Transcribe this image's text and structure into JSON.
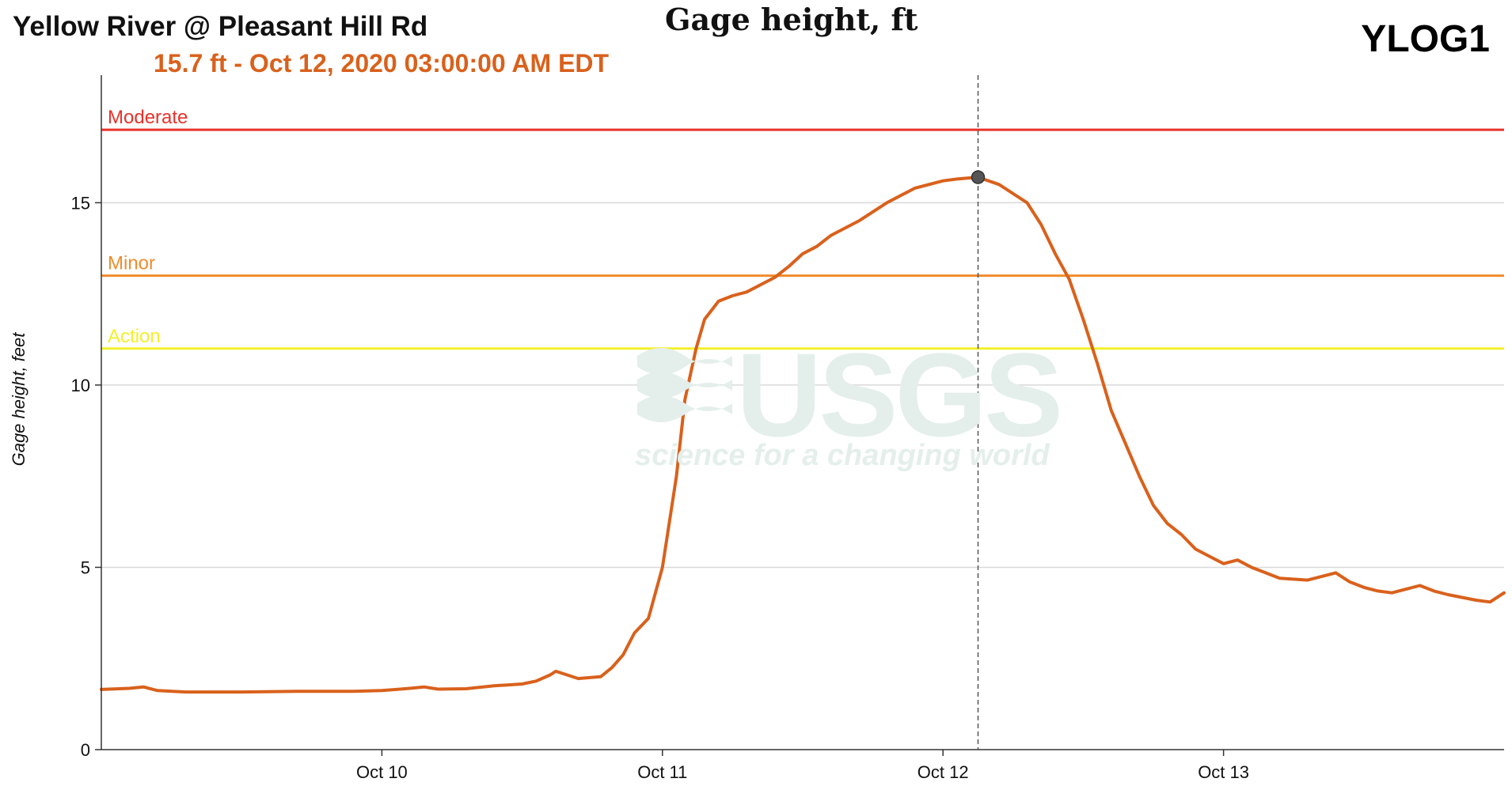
{
  "header": {
    "station_title": "Yellow River @ Pleasant Hill Rd",
    "readout": "15.7 ft - Oct 12, 2020 03:00:00 AM EDT",
    "chart_title": "Gage height, ft",
    "site_code": "YLOG1"
  },
  "watermark": {
    "logo_text": "USGS",
    "tagline": "science for a changing world"
  },
  "colors": {
    "series": "#d9611c",
    "moderate": "#e8312a",
    "minor": "#f08c2c",
    "action": "#f3f02a",
    "grid": "#d9d9d9",
    "axis": "#333333"
  },
  "chart_data": {
    "type": "line",
    "title": "Gage height, ft",
    "xlabel": "",
    "ylabel": "Gage height, feet",
    "ylim": [
      0,
      18.5
    ],
    "xlim_days": [
      9.0,
      14.0
    ],
    "x_unit": "October 2020 (day of month, fractional)",
    "yticks": [
      0,
      5,
      10,
      15
    ],
    "xticks": [
      {
        "x": 10,
        "label": "Oct 10"
      },
      {
        "x": 11,
        "label": "Oct 11"
      },
      {
        "x": 12,
        "label": "Oct 12"
      },
      {
        "x": 13,
        "label": "Oct 13"
      }
    ],
    "grid": true,
    "thresholds": [
      {
        "name": "Moderate",
        "value": 17.0,
        "color": "#e8312a"
      },
      {
        "name": "Minor",
        "value": 13.0,
        "color": "#f08c2c"
      },
      {
        "name": "Action",
        "value": 11.0,
        "color": "#f3f02a"
      }
    ],
    "highlight": {
      "x": 12.125,
      "y": 15.7
    },
    "series": [
      {
        "x": [
          9.0,
          9.1,
          9.15,
          9.2,
          9.3,
          9.5,
          9.7,
          9.9,
          10.0,
          10.1,
          10.15,
          10.2,
          10.3,
          10.4,
          10.5,
          10.55,
          10.6,
          10.62,
          10.7,
          10.78,
          10.82,
          10.86,
          10.9,
          10.95,
          11.0,
          11.05,
          11.08,
          11.12,
          11.15,
          11.2,
          11.25,
          11.3,
          11.35,
          11.4,
          11.45,
          11.5,
          11.55,
          11.6,
          11.7,
          11.8,
          11.9,
          12.0,
          12.05,
          12.125,
          12.2,
          12.3,
          12.35,
          12.4,
          12.45,
          12.5,
          12.55,
          12.6,
          12.65,
          12.7,
          12.75,
          12.8,
          12.85,
          12.9,
          12.95,
          13.0,
          13.05,
          13.1,
          13.15,
          13.2,
          13.3,
          13.4,
          13.45,
          13.5,
          13.55,
          13.6,
          13.7,
          13.75,
          13.8,
          13.9,
          13.95,
          14.0
        ],
        "values": [
          1.65,
          1.68,
          1.72,
          1.62,
          1.58,
          1.58,
          1.6,
          1.6,
          1.62,
          1.68,
          1.72,
          1.66,
          1.67,
          1.75,
          1.8,
          1.88,
          2.05,
          2.15,
          1.95,
          2.0,
          2.25,
          2.6,
          3.2,
          3.6,
          5.0,
          7.5,
          9.6,
          11.0,
          11.8,
          12.3,
          12.45,
          12.55,
          12.75,
          12.95,
          13.25,
          13.6,
          13.8,
          14.1,
          14.5,
          15.0,
          15.4,
          15.6,
          15.65,
          15.7,
          15.5,
          15.0,
          14.4,
          13.6,
          12.9,
          11.8,
          10.6,
          9.3,
          8.4,
          7.5,
          6.7,
          6.2,
          5.9,
          5.5,
          5.3,
          5.1,
          5.2,
          5.0,
          4.85,
          4.7,
          4.65,
          4.85,
          4.6,
          4.45,
          4.35,
          4.3,
          4.5,
          4.35,
          4.25,
          4.1,
          4.05,
          4.3
        ]
      }
    ]
  }
}
